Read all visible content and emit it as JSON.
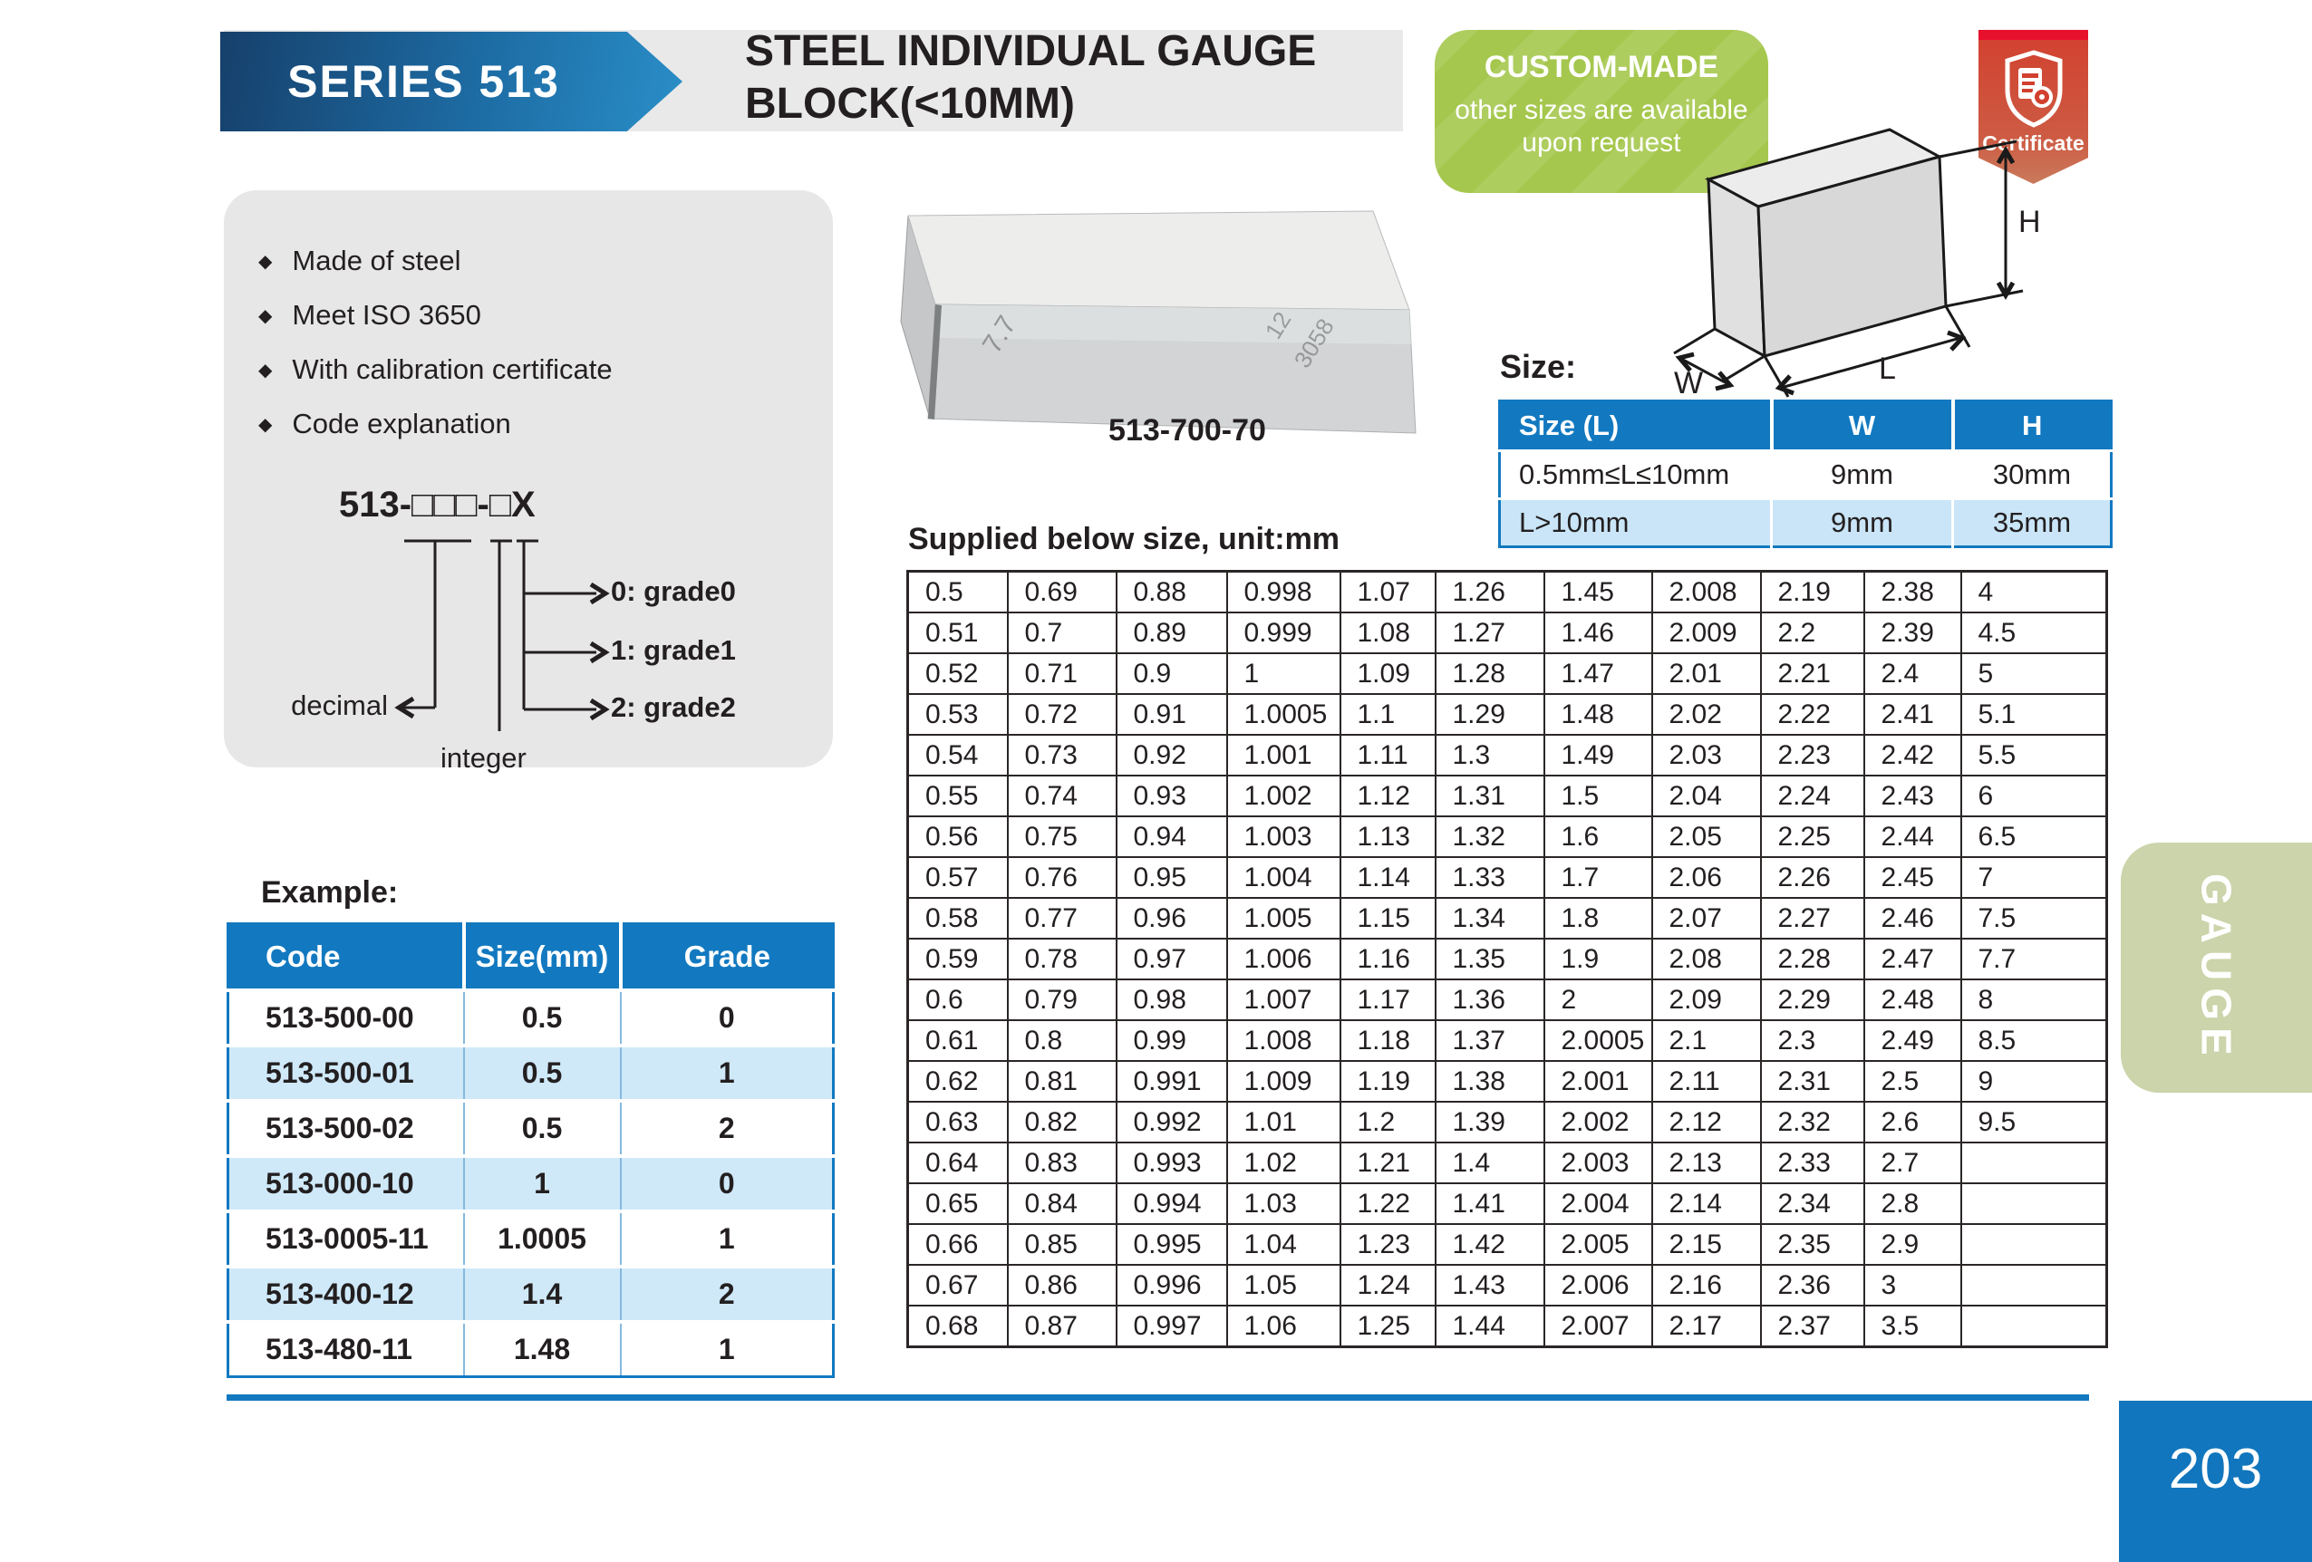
{
  "banner": {
    "series": "SERIES 513",
    "title_line1": "STEEL INDIVIDUAL GAUGE",
    "title_line2": "BLOCK(<10MM)"
  },
  "badge": {
    "title": "CUSTOM-MADE",
    "line1": "other sizes are available",
    "line2": "upon request"
  },
  "certificate": {
    "label": "Certificate"
  },
  "bullet_glyph": "◆",
  "features": [
    "Made of steel",
    "Meet ISO 3650",
    "With calibration certificate",
    "Code explanation"
  ],
  "code_diagram": {
    "code": "513-□□□-□X",
    "decimal_label": "decimal",
    "integer_label": "integer",
    "grades": [
      "0: grade0",
      "1: grade1",
      "2: grade2"
    ]
  },
  "product": {
    "model": "513-700-70",
    "engravings": [
      "7.7",
      "12",
      "3058"
    ]
  },
  "size_section": {
    "label": "Size:",
    "dims": {
      "h": "H",
      "l": "L",
      "w": "W"
    },
    "table": {
      "headers": [
        "Size (L)",
        "W",
        "H"
      ],
      "rows": [
        [
          "0.5mm≤L≤10mm",
          "9mm",
          "30mm"
        ],
        [
          "L>10mm",
          "9mm",
          "35mm"
        ]
      ]
    }
  },
  "supplied_table": {
    "title": "Supplied below size, unit:mm",
    "columns": [
      [
        "0.5",
        "0.51",
        "0.52",
        "0.53",
        "0.54",
        "0.55",
        "0.56",
        "0.57",
        "0.58",
        "0.59",
        "0.6",
        "0.61",
        "0.62",
        "0.63",
        "0.64",
        "0.65",
        "0.66",
        "0.67",
        "0.68"
      ],
      [
        "0.69",
        "0.7",
        "0.71",
        "0.72",
        "0.73",
        "0.74",
        "0.75",
        "0.76",
        "0.77",
        "0.78",
        "0.79",
        "0.8",
        "0.81",
        "0.82",
        "0.83",
        "0.84",
        "0.85",
        "0.86",
        "0.87"
      ],
      [
        "0.88",
        "0.89",
        "0.9",
        "0.91",
        "0.92",
        "0.93",
        "0.94",
        "0.95",
        "0.96",
        "0.97",
        "0.98",
        "0.99",
        "0.991",
        "0.992",
        "0.993",
        "0.994",
        "0.995",
        "0.996",
        "0.997"
      ],
      [
        "0.998",
        "0.999",
        "1",
        "1.0005",
        "1.001",
        "1.002",
        "1.003",
        "1.004",
        "1.005",
        "1.006",
        "1.007",
        "1.008",
        "1.009",
        "1.01",
        "1.02",
        "1.03",
        "1.04",
        "1.05",
        "1.06"
      ],
      [
        "1.07",
        "1.08",
        "1.09",
        "1.1",
        "1.11",
        "1.12",
        "1.13",
        "1.14",
        "1.15",
        "1.16",
        "1.17",
        "1.18",
        "1.19",
        "1.2",
        "1.21",
        "1.22",
        "1.23",
        "1.24",
        "1.25"
      ],
      [
        "1.26",
        "1.27",
        "1.28",
        "1.29",
        "1.3",
        "1.31",
        "1.32",
        "1.33",
        "1.34",
        "1.35",
        "1.36",
        "1.37",
        "1.38",
        "1.39",
        "1.4",
        "1.41",
        "1.42",
        "1.43",
        "1.44"
      ],
      [
        "1.45",
        "1.46",
        "1.47",
        "1.48",
        "1.49",
        "1.5",
        "1.6",
        "1.7",
        "1.8",
        "1.9",
        "2",
        "2.0005",
        "2.001",
        "2.002",
        "2.003",
        "2.004",
        "2.005",
        "2.006",
        "2.007"
      ],
      [
        "2.008",
        "2.009",
        "2.01",
        "2.02",
        "2.03",
        "2.04",
        "2.05",
        "2.06",
        "2.07",
        "2.08",
        "2.09",
        "2.1",
        "2.11",
        "2.12",
        "2.13",
        "2.14",
        "2.15",
        "2.16",
        "2.17"
      ],
      [
        "2.19",
        "2.2",
        "2.21",
        "2.22",
        "2.23",
        "2.24",
        "2.25",
        "2.26",
        "2.27",
        "2.28",
        "2.29",
        "2.3",
        "2.31",
        "2.32",
        "2.33",
        "2.34",
        "2.35",
        "2.36",
        "2.37"
      ],
      [
        "2.38",
        "2.39",
        "2.4",
        "2.41",
        "2.42",
        "2.43",
        "2.44",
        "2.45",
        "2.46",
        "2.47",
        "2.48",
        "2.49",
        "2.5",
        "2.6",
        "2.7",
        "2.8",
        "2.9",
        "3",
        "3.5"
      ],
      [
        "4",
        "4.5",
        "5",
        "5.1",
        "5.5",
        "6",
        "6.5",
        "7",
        "7.5",
        "7.7",
        "8",
        "8.5",
        "9",
        "9.5",
        "",
        "",
        "",
        "",
        ""
      ]
    ]
  },
  "example_table": {
    "label": "Example:",
    "headers": [
      "Code",
      "Size(mm)",
      "Grade"
    ],
    "rows": [
      [
        "513-500-00",
        "0.5",
        "0"
      ],
      [
        "513-500-01",
        "0.5",
        "1"
      ],
      [
        "513-500-02",
        "0.5",
        "2"
      ],
      [
        "513-000-10",
        "1",
        "0"
      ],
      [
        "513-0005-11",
        "1.0005",
        "1"
      ],
      [
        "513-400-12",
        "1.4",
        "2"
      ],
      [
        "513-480-11",
        "1.48",
        "1"
      ]
    ]
  },
  "side_tab": {
    "label": "GAUGE"
  },
  "footer": {
    "page": "203"
  },
  "colors": {
    "accent_blue": "#1279c0",
    "row_light_blue": "#cfe9f9",
    "size_row_blue": "#c9e5f7",
    "badge_green": "#a5c74d",
    "tab_green": "#cbd4aa",
    "cert_red": "#d2402e",
    "cert_band_red": "#e8112d",
    "footer_blue": "#1176bd",
    "banner_blue_dark": "#16406b",
    "banner_blue_light": "#2a8ec7",
    "panel_gray": "#e7e7e7",
    "text": "#231f20"
  }
}
